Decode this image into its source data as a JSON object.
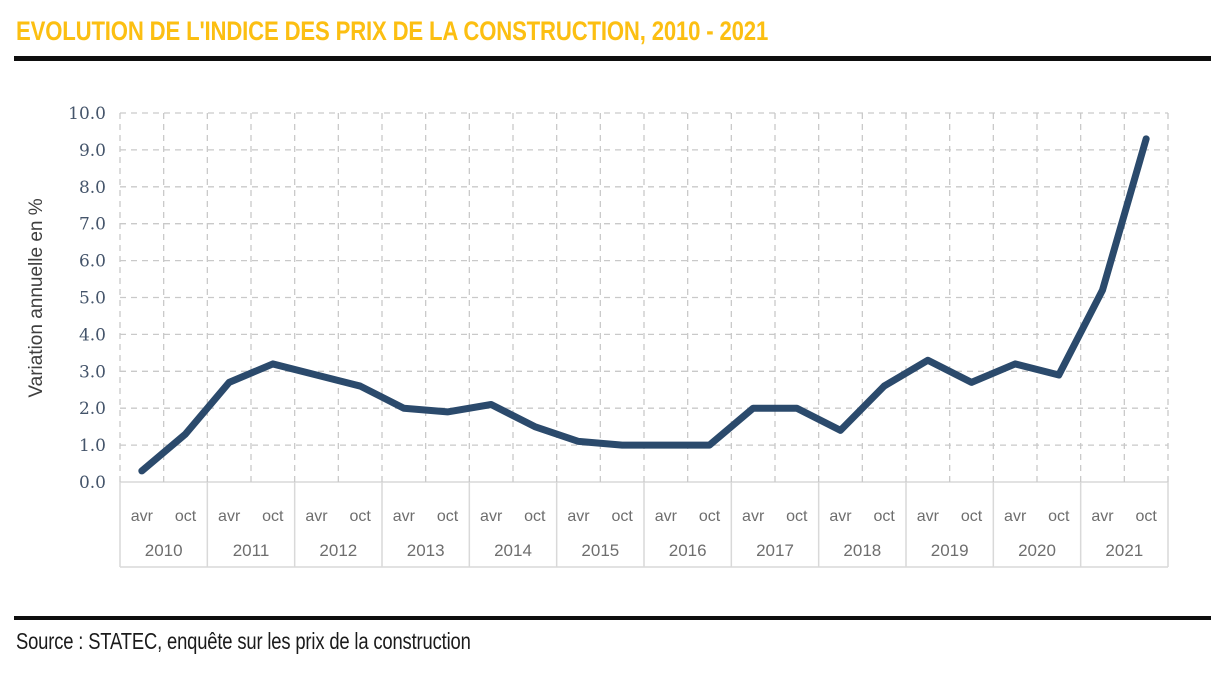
{
  "title": "EVOLUTION DE L'INDICE DES PRIX DE LA CONSTRUCTION, 2010 - 2021",
  "source": "Source : STATEC, enquête sur les prix de la construction",
  "colors": {
    "title_text": "#FCBF12",
    "line": "#2B4A6C",
    "grid": "#C9C9C9",
    "axis_band_border": "#D9D9D9",
    "ytick_text": "#44546A",
    "band_text": "#6E6E6E",
    "ylabel_text": "#3F3F3F",
    "rule": "#0E0E0E"
  },
  "chart_data": {
    "type": "line",
    "title": "EVOLUTION DE L'INDICE DES PRIX DE LA CONSTRUCTION, 2010 - 2021",
    "xlabel": "",
    "ylabel": "Variation annuelle en %",
    "ylim": [
      0,
      10
    ],
    "ytick_step": 1,
    "ytick_labels": [
      "0.0",
      "1.0",
      "2.0",
      "3.0",
      "4.0",
      "5.0",
      "6.0",
      "7.0",
      "8.0",
      "9.0",
      "10.0"
    ],
    "grid": "dashed",
    "legend": "none",
    "period_labels": [
      "avr",
      "oct"
    ],
    "series": [
      {
        "name": "Variation annuelle en %",
        "points": [
          {
            "year": "2010",
            "avr": 0.3,
            "oct": 1.3
          },
          {
            "year": "2011",
            "avr": 2.7,
            "oct": 3.2
          },
          {
            "year": "2012",
            "avr": 2.9,
            "oct": 2.6
          },
          {
            "year": "2013",
            "avr": 2.0,
            "oct": 1.9
          },
          {
            "year": "2014",
            "avr": 2.1,
            "oct": 1.5
          },
          {
            "year": "2015",
            "avr": 1.1,
            "oct": 1.0
          },
          {
            "year": "2016",
            "avr": 1.0,
            "oct": 1.0
          },
          {
            "year": "2017",
            "avr": 2.0,
            "oct": 2.0
          },
          {
            "year": "2018",
            "avr": 1.4,
            "oct": 2.6
          },
          {
            "year": "2019",
            "avr": 3.3,
            "oct": 2.7
          },
          {
            "year": "2020",
            "avr": 3.2,
            "oct": 2.9
          },
          {
            "year": "2021",
            "avr": 5.2,
            "oct": 9.3
          }
        ]
      }
    ]
  }
}
